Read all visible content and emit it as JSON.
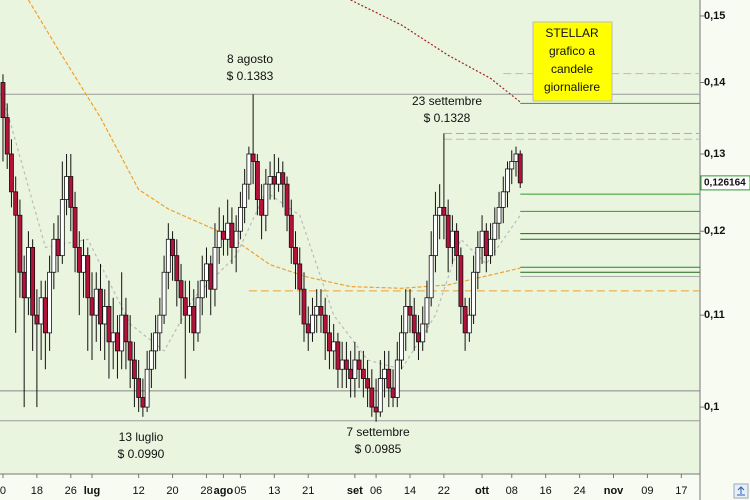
{
  "chart_data": {
    "type": "candlestick",
    "log_scale": true,
    "xlim": [
      -0.7,
      164.4
    ],
    "ylim": [
      0.0933,
      0.1525
    ],
    "yticks": [
      {
        "value": 0.15,
        "label": "0,15"
      },
      {
        "value": 0.14,
        "label": "0,14"
      },
      {
        "value": 0.13,
        "label": "0,13"
      },
      {
        "value": 0.12,
        "label": "0,12"
      },
      {
        "value": 0.11,
        "label": "0,11"
      },
      {
        "value": 0.1,
        "label": "0,1"
      }
    ],
    "xticks": [
      {
        "value": 0,
        "label": "0"
      },
      {
        "value": 8,
        "label": "18"
      },
      {
        "value": 16,
        "label": "26"
      },
      {
        "value": 21,
        "label": "lug"
      },
      {
        "value": 32,
        "label": "12"
      },
      {
        "value": 40,
        "label": "20"
      },
      {
        "value": 48,
        "label": "28"
      },
      {
        "value": 52,
        "label": "ago"
      },
      {
        "value": 56,
        "label": "05"
      },
      {
        "value": 64,
        "label": "13"
      },
      {
        "value": 72,
        "label": "21"
      },
      {
        "value": 83,
        "label": "set"
      },
      {
        "value": 88,
        "label": "06"
      },
      {
        "value": 96,
        "label": "14"
      },
      {
        "value": 104,
        "label": "22"
      },
      {
        "value": 113,
        "label": "ott"
      },
      {
        "value": 120,
        "label": "08"
      },
      {
        "value": 128,
        "label": "16"
      },
      {
        "value": 136,
        "label": "24"
      },
      {
        "value": 144,
        "label": "nov"
      },
      {
        "value": 152,
        "label": "09"
      },
      {
        "value": 160,
        "label": "17"
      }
    ],
    "up_color": "#ffffff",
    "down_color": "#b5123a",
    "x": [
      0,
      1,
      2,
      3,
      4,
      5,
      6,
      7,
      8,
      9,
      10,
      11,
      12,
      13,
      14,
      15,
      16,
      17,
      18,
      19,
      20,
      21,
      22,
      23,
      24,
      25,
      26,
      27,
      28,
      29,
      30,
      31,
      32,
      33,
      34,
      35,
      36,
      37,
      38,
      39,
      40,
      41,
      42,
      43,
      44,
      45,
      46,
      47,
      48,
      49,
      50,
      51,
      52,
      53,
      54,
      55,
      56,
      57,
      58,
      59,
      60,
      61,
      62,
      63,
      64,
      65,
      66,
      67,
      68,
      69,
      70,
      71,
      72,
      73,
      74,
      75,
      76,
      77,
      78,
      79,
      80,
      81,
      82,
      83,
      84,
      85,
      86,
      87,
      88,
      89,
      90,
      91,
      92,
      93,
      94,
      95,
      96,
      97,
      98,
      99,
      100,
      101,
      102,
      103,
      104,
      105,
      106,
      107,
      108,
      109,
      110,
      111,
      112,
      113,
      114,
      115,
      116,
      117,
      118,
      119,
      120,
      121,
      122
    ],
    "open": [
      0.14,
      0.135,
      0.13,
      0.125,
      0.122,
      0.115,
      0.112,
      0.118,
      0.11,
      0.109,
      0.112,
      0.108,
      0.115,
      0.119,
      0.117,
      0.124,
      0.127,
      0.123,
      0.118,
      0.115,
      0.117,
      0.112,
      0.11,
      0.113,
      0.109,
      0.111,
      0.107,
      0.108,
      0.106,
      0.11,
      0.107,
      0.105,
      0.103,
      0.101,
      0.1,
      0.104,
      0.106,
      0.108,
      0.11,
      0.115,
      0.119,
      0.117,
      0.114,
      0.112,
      0.11,
      0.111,
      0.108,
      0.112,
      0.114,
      0.116,
      0.113,
      0.118,
      0.12,
      0.119,
      0.121,
      0.118,
      0.12,
      0.123,
      0.126,
      0.13,
      0.129,
      0.124,
      0.122,
      0.126,
      0.127,
      0.126,
      0.1275,
      0.126,
      0.122,
      0.118,
      0.116,
      0.113,
      0.109,
      0.108,
      0.11,
      0.111,
      0.11,
      0.108,
      0.106,
      0.107,
      0.104,
      0.105,
      0.104,
      0.103,
      0.105,
      0.104,
      0.103,
      0.102,
      0.1,
      0.0995,
      0.103,
      0.104,
      0.102,
      0.101,
      0.105,
      0.108,
      0.111,
      0.11,
      0.108,
      0.107,
      0.109,
      0.112,
      0.117,
      0.122,
      0.123,
      0.122,
      0.118,
      0.12,
      0.117,
      0.111,
      0.108,
      0.11,
      0.115,
      0.118,
      0.12,
      0.117,
      0.119,
      0.121,
      0.123,
      0.125,
      0.128,
      0.129,
      0.13
    ],
    "high": [
      0.1412,
      0.137,
      0.132,
      0.127,
      0.124,
      0.117,
      0.12,
      0.119,
      0.113,
      0.114,
      0.114,
      0.117,
      0.121,
      0.122,
      0.129,
      0.13,
      0.13,
      0.125,
      0.12,
      0.119,
      0.118,
      0.115,
      0.115,
      0.116,
      0.113,
      0.114,
      0.112,
      0.11,
      0.115,
      0.112,
      0.11,
      0.107,
      0.105,
      0.103,
      0.106,
      0.108,
      0.11,
      0.112,
      0.117,
      0.121,
      0.12,
      0.119,
      0.116,
      0.114,
      0.114,
      0.113,
      0.114,
      0.117,
      0.118,
      0.117,
      0.121,
      0.123,
      0.122,
      0.124,
      0.123,
      0.122,
      0.125,
      0.128,
      0.131,
      0.1383,
      0.13,
      0.126,
      0.128,
      0.129,
      0.13,
      0.1295,
      0.129,
      0.127,
      0.124,
      0.12,
      0.118,
      0.115,
      0.111,
      0.112,
      0.113,
      0.113,
      0.112,
      0.11,
      0.109,
      0.108,
      0.107,
      0.107,
      0.106,
      0.107,
      0.106,
      0.106,
      0.105,
      0.104,
      0.103,
      0.105,
      0.106,
      0.106,
      0.104,
      0.107,
      0.11,
      0.113,
      0.113,
      0.112,
      0.11,
      0.111,
      0.114,
      0.12,
      0.125,
      0.126,
      0.1328,
      0.124,
      0.122,
      0.121,
      0.118,
      0.112,
      0.112,
      0.117,
      0.12,
      0.122,
      0.121,
      0.121,
      0.123,
      0.125,
      0.127,
      0.129,
      0.1305,
      0.131,
      0.1305
    ],
    "low": [
      0.129,
      0.128,
      0.123,
      0.108,
      0.112,
      0.1,
      0.11,
      0.106,
      0.1,
      0.105,
      0.104,
      0.106,
      0.113,
      0.115,
      0.116,
      0.122,
      0.12,
      0.115,
      0.11,
      0.112,
      0.106,
      0.105,
      0.107,
      0.106,
      0.105,
      0.103,
      0.104,
      0.103,
      0.104,
      0.104,
      0.102,
      0.1,
      0.0995,
      0.099,
      0.0995,
      0.102,
      0.104,
      0.106,
      0.109,
      0.113,
      0.114,
      0.111,
      0.109,
      0.103,
      0.108,
      0.106,
      0.107,
      0.11,
      0.112,
      0.11,
      0.111,
      0.116,
      0.117,
      0.117,
      0.116,
      0.115,
      0.119,
      0.121,
      0.124,
      0.126,
      0.122,
      0.119,
      0.12,
      0.124,
      0.124,
      0.125,
      0.123,
      0.12,
      0.116,
      0.113,
      0.11,
      0.107,
      0.106,
      0.107,
      0.108,
      0.108,
      0.105,
      0.104,
      0.104,
      0.102,
      0.102,
      0.102,
      0.101,
      0.101,
      0.102,
      0.101,
      0.1,
      0.099,
      0.0985,
      0.099,
      0.101,
      0.1,
      0.1,
      0.1,
      0.104,
      0.106,
      0.108,
      0.106,
      0.105,
      0.106,
      0.108,
      0.111,
      0.115,
      0.119,
      0.119,
      0.115,
      0.116,
      0.114,
      0.109,
      0.106,
      0.107,
      0.109,
      0.113,
      0.116,
      0.115,
      0.116,
      0.117,
      0.119,
      0.121,
      0.123,
      0.126,
      0.127,
      0.1255
    ],
    "close": [
      0.135,
      0.13,
      0.125,
      0.122,
      0.115,
      0.112,
      0.118,
      0.11,
      0.109,
      0.112,
      0.108,
      0.115,
      0.119,
      0.117,
      0.124,
      0.127,
      0.123,
      0.118,
      0.115,
      0.117,
      0.112,
      0.11,
      0.113,
      0.109,
      0.111,
      0.107,
      0.108,
      0.106,
      0.11,
      0.107,
      0.105,
      0.103,
      0.101,
      0.1,
      0.104,
      0.106,
      0.108,
      0.11,
      0.115,
      0.119,
      0.117,
      0.114,
      0.112,
      0.11,
      0.111,
      0.108,
      0.112,
      0.114,
      0.116,
      0.113,
      0.118,
      0.12,
      0.119,
      0.121,
      0.118,
      0.12,
      0.123,
      0.126,
      0.13,
      0.129,
      0.124,
      0.122,
      0.126,
      0.127,
      0.126,
      0.1275,
      0.126,
      0.122,
      0.118,
      0.116,
      0.113,
      0.109,
      0.108,
      0.11,
      0.111,
      0.11,
      0.108,
      0.106,
      0.107,
      0.104,
      0.105,
      0.104,
      0.103,
      0.105,
      0.104,
      0.103,
      0.102,
      0.1,
      0.0995,
      0.103,
      0.104,
      0.102,
      0.101,
      0.105,
      0.108,
      0.111,
      0.11,
      0.108,
      0.107,
      0.109,
      0.112,
      0.117,
      0.122,
      0.123,
      0.122,
      0.118,
      0.12,
      0.117,
      0.111,
      0.108,
      0.11,
      0.115,
      0.118,
      0.12,
      0.117,
      0.119,
      0.121,
      0.123,
      0.125,
      0.128,
      0.129,
      0.13,
      0.126164
    ],
    "last_price": {
      "value": 0.126164,
      "label": "0,126164"
    },
    "levels": [
      {
        "value": 0.1413,
        "color": "#bbbbbb",
        "style": "dashed",
        "xstart": 118
      },
      {
        "value": 0.1383,
        "color": "#999999",
        "style": "solid",
        "xstart": -0.7
      },
      {
        "value": 0.137,
        "color": "#2e9a2e",
        "style": "solid",
        "xstart": 122
      },
      {
        "value": 0.1328,
        "color": "#f0a030",
        "style": "dashed",
        "xstart": 104
      },
      {
        "value": 0.132,
        "color": "#bbbbbb",
        "style": "dashed",
        "xstart": 104
      },
      {
        "value": 0.1247,
        "color": "#2e9a2e",
        "style": "solid",
        "xstart": 122
      },
      {
        "value": 0.1225,
        "color": "#2e9a2e",
        "style": "solid",
        "xstart": 122
      },
      {
        "value": 0.1197,
        "color": "#1e6a1e",
        "style": "solid",
        "xstart": 122
      },
      {
        "value": 0.119,
        "color": "#1e6a1e",
        "style": "solid",
        "xstart": 122
      },
      {
        "value": 0.1156,
        "color": "#1e8a1e",
        "style": "solid",
        "xstart": 122
      },
      {
        "value": 0.115,
        "color": "#1e6a1e",
        "style": "solid",
        "xstart": 122
      },
      {
        "value": 0.1145,
        "color": "#aaaaaa",
        "style": "solid",
        "xstart": 122
      },
      {
        "value": 0.1128,
        "color": "#f0a030",
        "style": "dashed",
        "xstart": 58
      },
      {
        "value": 0.1017,
        "color": "#888888",
        "style": "solid",
        "xstart": -0.7
      },
      {
        "value": 0.0986,
        "color": "#999999",
        "style": "solid",
        "xstart": -0.7
      }
    ],
    "moving_averages": [
      {
        "color": "#a02020",
        "dash": "2,2",
        "x": [
          82,
          94,
          105,
          115,
          122
        ],
        "values": [
          0.1525,
          0.1486,
          0.144,
          0.1406,
          0.1372
        ]
      },
      {
        "color": "#f0a030",
        "dash": "4,2",
        "x": [
          6,
          13,
          23,
          32,
          39,
          53,
          63,
          72,
          82,
          94,
          105,
          122
        ],
        "values": [
          0.1525,
          0.1449,
          0.135,
          0.1253,
          0.1228,
          0.1195,
          0.1159,
          0.1144,
          0.1133,
          0.1131,
          0.1135,
          0.1155
        ]
      },
      {
        "color": "#bbbbbb",
        "dash": "3,3",
        "x": [
          0,
          10,
          20,
          30,
          38,
          45,
          55,
          62,
          70,
          78,
          86,
          94,
          102,
          108,
          114,
          122
        ],
        "values": [
          0.138,
          0.118,
          0.119,
          0.109,
          0.106,
          0.112,
          0.117,
          0.125,
          0.122,
          0.11,
          0.105,
          0.104,
          0.11,
          0.119,
          0.116,
          0.122
        ]
      }
    ],
    "annotations": [
      {
        "date": "8 agosto",
        "price": "$ 0.1383"
      },
      {
        "date": "23 settembre",
        "price": "$ 0.1328"
      },
      {
        "date": "13 luglio",
        "price": "$ 0.0990"
      },
      {
        "date": "7 settembre",
        "price": "$ 0.0985"
      }
    ],
    "title_box": [
      "STELLAR",
      "grafico a",
      "candele",
      "giornaliere"
    ]
  }
}
